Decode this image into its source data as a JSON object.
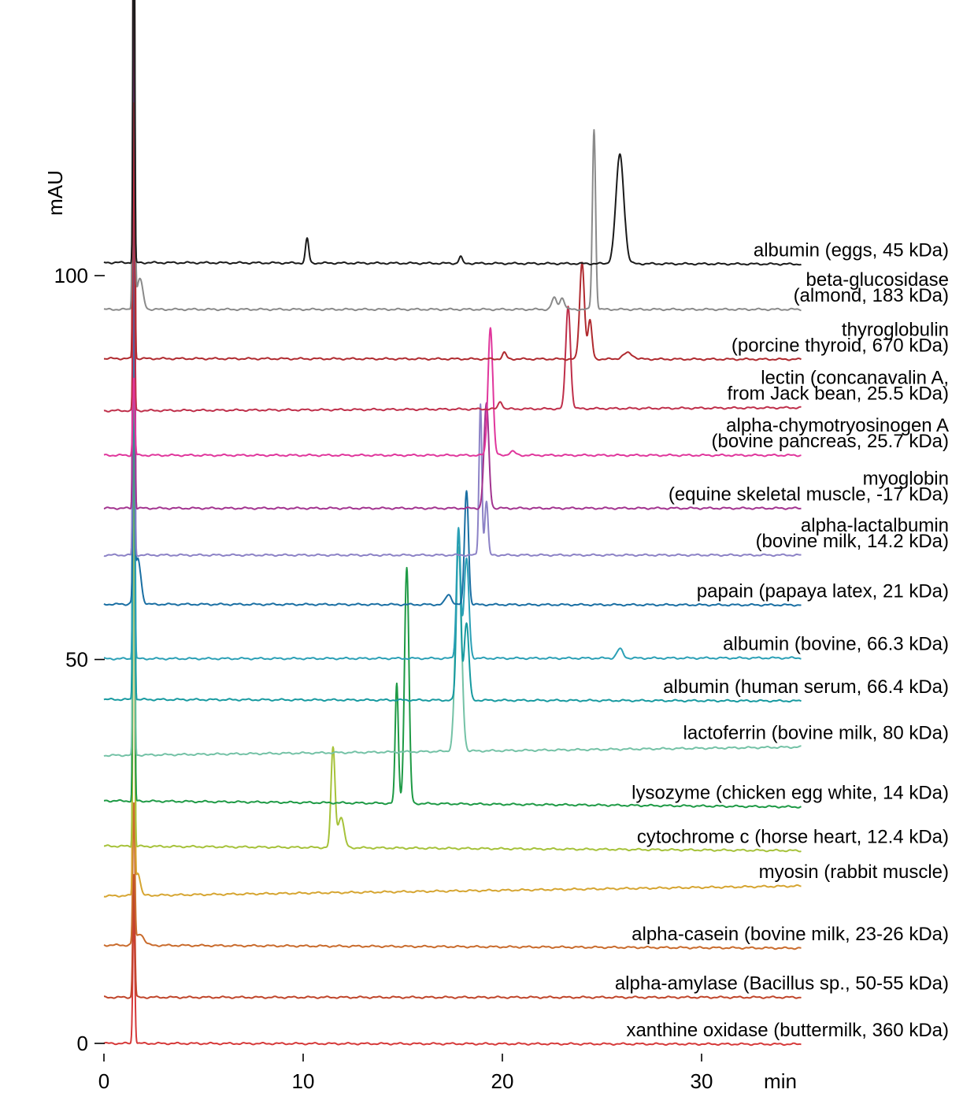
{
  "chart_data": {
    "type": "line",
    "title": "",
    "xlabel": "min",
    "ylabel": "mAU",
    "xlim": [
      0,
      35
    ],
    "ylim": [
      0,
      150
    ],
    "x_ticks": [
      "0",
      "10",
      "20",
      "30"
    ],
    "y_ticks": [
      "0",
      "50",
      "100"
    ],
    "series": [
      {
        "name": "xanthine oxidase",
        "label_lines": [
          "xanthine oxidase (buttermilk, 360 kDa)"
        ],
        "color": "#d63a3a",
        "baseline": 0.0,
        "drift": -0.1,
        "peaks": [
          [
            1.5,
            18,
            0.05
          ]
        ]
      },
      {
        "name": "alpha-amylase",
        "label_lines": [
          "alpha-amylase (Bacillus sp., 50-55 kDa)"
        ],
        "color": "#c0452a",
        "baseline": 6.0,
        "drift": 0.0,
        "peaks": [
          [
            1.5,
            16,
            0.05
          ]
        ]
      },
      {
        "name": "alpha-casein",
        "label_lines": [
          "alpha-casein  (bovine milk, 23-26 kDa)"
        ],
        "color": "#c96b2c",
        "baseline": 12.8,
        "drift": -0.4,
        "peaks": [
          [
            1.5,
            18,
            0.05
          ],
          [
            1.8,
            1.5,
            0.2
          ]
        ]
      },
      {
        "name": "myosin",
        "label_lines": [
          "myosin (rabbit muscle)"
        ],
        "color": "#d6a531",
        "baseline": 19.2,
        "drift": 1.3,
        "peaks": [
          [
            1.5,
            75,
            0.04
          ],
          [
            1.7,
            3,
            0.12
          ]
        ]
      },
      {
        "name": "cytochrome c",
        "label_lines": [
          "cytochrome c (horse heart, 12.4 kDa)"
        ],
        "color": "#a6c23a",
        "baseline": 25.7,
        "drift": -0.6,
        "peaks": [
          [
            1.5,
            80,
            0.04
          ],
          [
            11.5,
            13,
            0.1
          ],
          [
            11.9,
            4,
            0.15
          ]
        ]
      },
      {
        "name": "lysozyme",
        "label_lines": [
          "lysozyme (chicken egg white, 14 kDa)"
        ],
        "color": "#1e9a45",
        "baseline": 31.6,
        "drift": -0.8,
        "peaks": [
          [
            1.5,
            85,
            0.04
          ],
          [
            14.7,
            15.6,
            0.08
          ],
          [
            15.2,
            30.7,
            0.11
          ]
        ]
      },
      {
        "name": "lactoferrin",
        "label_lines": [
          "lactoferrin (bovine milk, 80 kDa)"
        ],
        "color": "#74c2a6",
        "baseline": 37.5,
        "drift": 1.1,
        "peaks": [
          [
            1.5,
            85,
            0.04
          ],
          [
            17.8,
            26.5,
            0.15
          ]
        ]
      },
      {
        "name": "albumin (human serum)",
        "label_lines": [
          "albumin (human serum, 66.4 kDa)"
        ],
        "color": "#179aa0",
        "baseline": 44.8,
        "drift": -0.2,
        "peaks": [
          [
            1.5,
            90,
            0.04
          ],
          [
            17.8,
            22,
            0.1
          ],
          [
            18.2,
            10,
            0.12
          ]
        ]
      },
      {
        "name": "albumin (bovine)",
        "label_lines": [
          "albumin (bovine, 66.3 kDa)"
        ],
        "color": "#2ba0b6",
        "baseline": 50.1,
        "drift": 0.1,
        "peaks": [
          [
            1.5,
            90,
            0.04
          ],
          [
            17.8,
            17,
            0.1
          ],
          [
            18.2,
            13,
            0.12
          ],
          [
            25.9,
            1.2,
            0.15
          ]
        ]
      },
      {
        "name": "papain",
        "label_lines": [
          "papain (papaya latex, 21 kDa)"
        ],
        "color": "#1a6fa3",
        "baseline": 57.2,
        "drift": -0.1,
        "peaks": [
          [
            1.5,
            48,
            0.04
          ],
          [
            1.7,
            6,
            0.15
          ],
          [
            17.3,
            1.3,
            0.15
          ],
          [
            18.2,
            14.9,
            0.1
          ]
        ]
      },
      {
        "name": "alpha-lactalbumin",
        "label_lines": [
          "alpha-lactalbumin",
          "(bovine milk, 14.2 kDa)"
        ],
        "color": "#8c82c6",
        "baseline": 63.6,
        "drift": 0.0,
        "peaks": [
          [
            1.5,
            87,
            0.04
          ],
          [
            18.9,
            19.7,
            0.07
          ],
          [
            19.2,
            7,
            0.08
          ]
        ]
      },
      {
        "name": "myoglobin",
        "label_lines": [
          "myoglobin",
          "(equine skeletal muscle, -17 kDa)"
        ],
        "color": "#a2338f",
        "baseline": 69.7,
        "drift": 0.0,
        "peaks": [
          [
            1.5,
            90,
            0.04
          ],
          [
            19.2,
            13.6,
            0.12
          ]
        ]
      },
      {
        "name": "alpha-chymotrypsinogen A",
        "label_lines": [
          "alpha-chymotryosinogen A",
          "(bovine pancreas, 25.7 kDa)"
        ],
        "color": "#e0369c",
        "baseline": 76.6,
        "drift": 0.0,
        "peaks": [
          [
            1.5,
            10,
            0.05
          ],
          [
            19.4,
            16.7,
            0.12
          ],
          [
            20.5,
            0.5,
            0.15
          ]
        ]
      },
      {
        "name": "lectin",
        "label_lines": [
          "lectin (concanavalin A,",
          "from Jack bean, 25.5 kDa)"
        ],
        "color": "#bf2f4a",
        "baseline": 82.4,
        "drift": 0.4,
        "peaks": [
          [
            1.5,
            40,
            0.04
          ],
          [
            19.9,
            1,
            0.1
          ],
          [
            23.3,
            13.4,
            0.12
          ]
        ]
      },
      {
        "name": "thyroglobulin",
        "label_lines": [
          "thyroglobulin",
          "(porcine thyroid, 670 kDa)"
        ],
        "color": "#b02a2f",
        "baseline": 89.2,
        "drift": -0.1,
        "peaks": [
          [
            1.5,
            90,
            0.04
          ],
          [
            20.1,
            0.8,
            0.1
          ],
          [
            24.0,
            12.6,
            0.12
          ],
          [
            24.4,
            5,
            0.1
          ],
          [
            26.3,
            0.8,
            0.25
          ]
        ]
      },
      {
        "name": "beta-glucosidase",
        "label_lines": [
          "beta-glucosidase",
          "(almond, 183 kDa)"
        ],
        "color": "#8a8a8a",
        "baseline": 95.6,
        "drift": 0.0,
        "peaks": [
          [
            1.5,
            60,
            0.05
          ],
          [
            1.8,
            4,
            0.15
          ],
          [
            22.6,
            1.5,
            0.12
          ],
          [
            23.0,
            1.5,
            0.12
          ],
          [
            24.6,
            23.4,
            0.08
          ]
        ]
      },
      {
        "name": "albumin (eggs)",
        "label_lines": [
          "albumin (eggs, 45 kDa)"
        ],
        "color": "#1a1a1a",
        "baseline": 101.7,
        "drift": -0.2,
        "peaks": [
          [
            1.5,
            55,
            0.04
          ],
          [
            10.2,
            3.2,
            0.08
          ],
          [
            17.9,
            0.9,
            0.08
          ],
          [
            25.9,
            14.2,
            0.2
          ]
        ]
      }
    ]
  }
}
